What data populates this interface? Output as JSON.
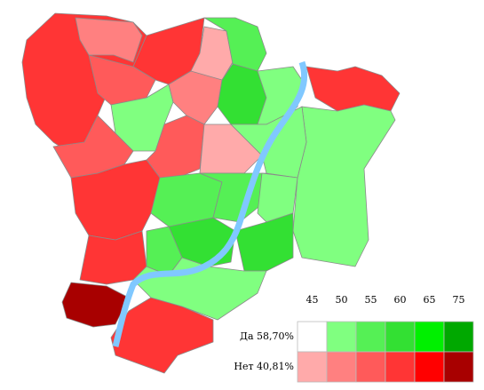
{
  "legend": {
    "scale": [
      "45",
      "50",
      "55",
      "60",
      "65",
      "75"
    ],
    "rows": [
      {
        "label": "Да 58,70%",
        "colors": [
          "#ffffff",
          "#80ff80",
          "#55f055",
          "#33e033",
          "#00f000",
          "#00a800"
        ]
      },
      {
        "label": "Нет 40,81%",
        "colors": [
          "#ffaaaa",
          "#ff8080",
          "#ff5a5a",
          "#ff3535",
          "#ff0000",
          "#a80000"
        ]
      }
    ]
  }
}
